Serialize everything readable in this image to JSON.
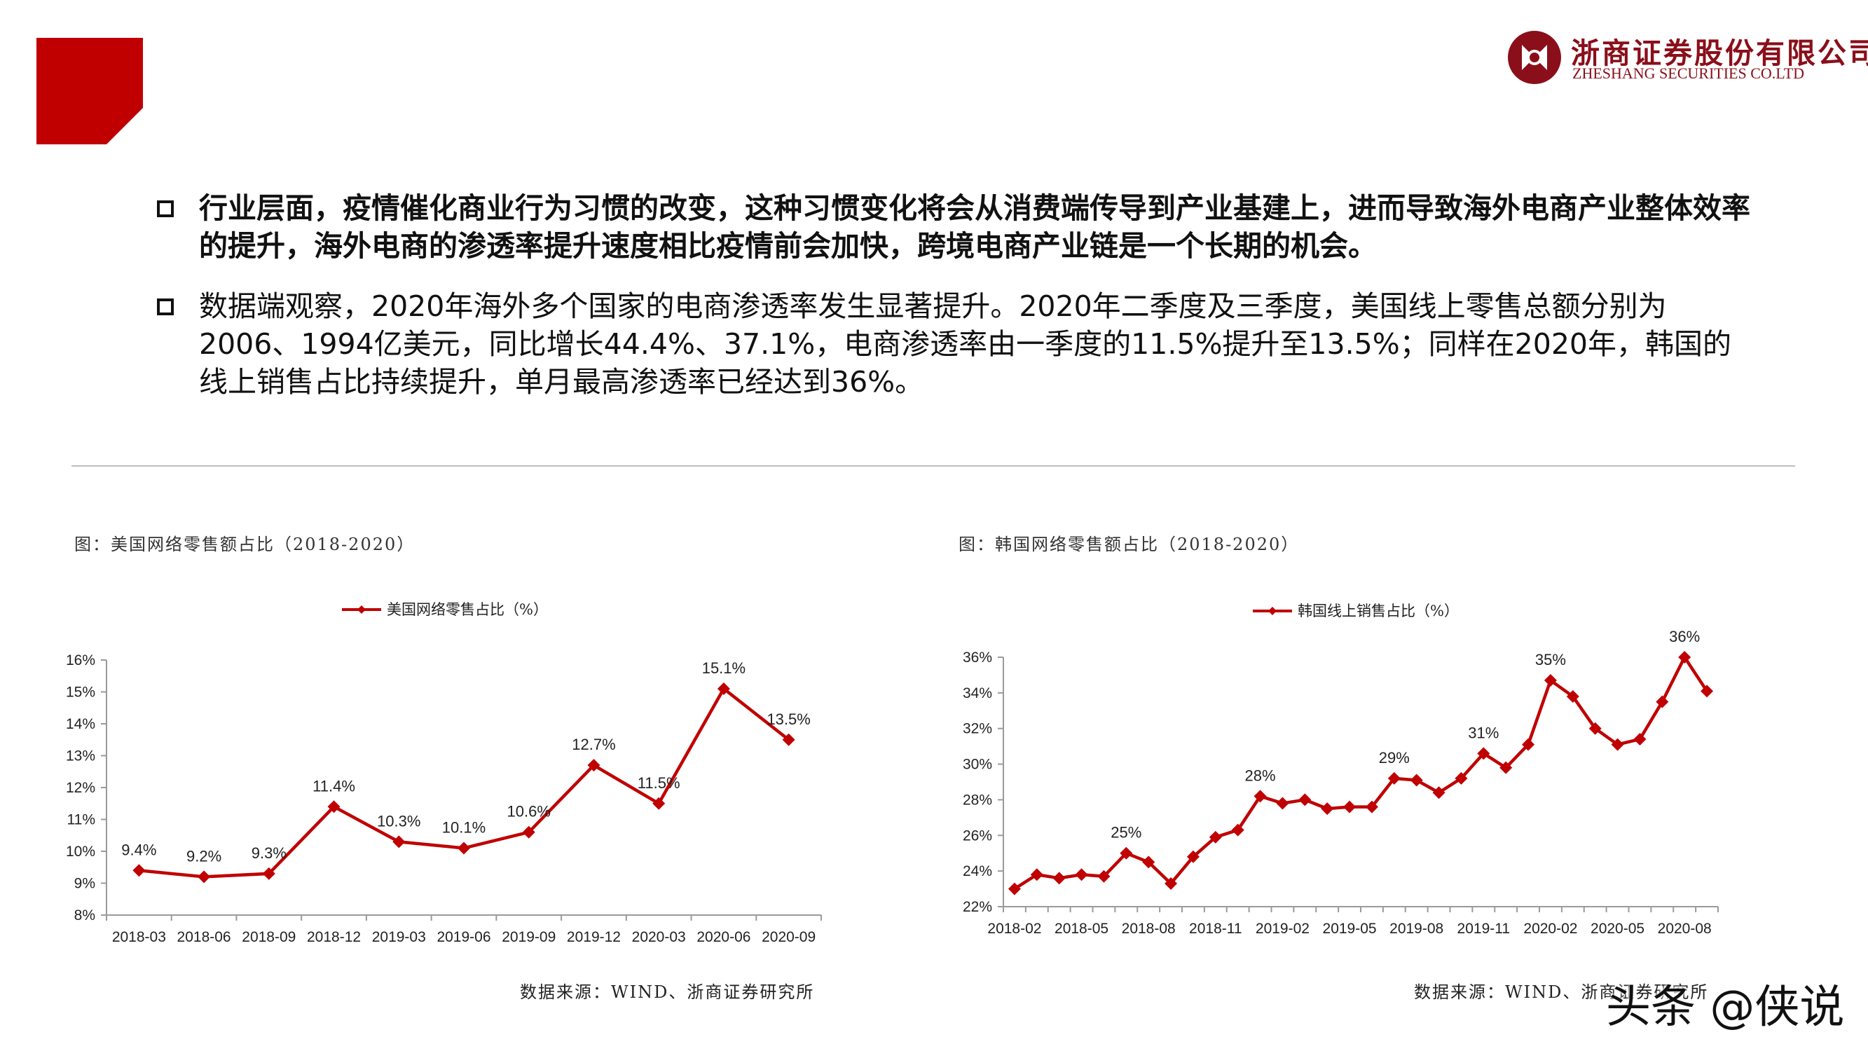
{
  "brand": {
    "company_cn": "浙商证券股份有限公司",
    "company_en": "ZHESHANG SECURITIES CO.LTD",
    "accent_color": "#c00000",
    "logo_color": "#8a0f1a",
    "logo_icon": "zheshang-logo-icon"
  },
  "bullets": [
    {
      "icon": "square-bullet-icon",
      "text": "行业层面，疫情催化商业行为习惯的改变，这种习惯变化将会从消费端传导到产业基建上，进而导致海外电商产业整体效率的提升，海外电商的渗透率提升速度相比疫情前会加快，跨境电商产业链是一个长期的机会。"
    },
    {
      "icon": "square-bullet-icon",
      "text": "数据端观察，2020年海外多个国家的电商渗透率发生显著提升。2020年二季度及三季度，美国线上零售总额分别为2006、1994亿美元，同比增长44.4%、37.1%，电商渗透率由一季度的11.5%提升至13.5%；同样在2020年，韩国的线上销售占比持续提升，单月最高渗透率已经达到36%。"
    }
  ],
  "figures": [
    {
      "title": "图：美国网络零售额占比（2018-2020）",
      "source": "数据来源：WIND、浙商证券研究所"
    },
    {
      "title": "图：韩国网络零售额占比（2018-2020）",
      "source": "数据来源：WIND、浙商证券研究所"
    }
  ],
  "watermark": "头条 @侠说",
  "chart_data": [
    {
      "type": "line",
      "title": "",
      "series": [
        {
          "name": "美国网络零售占比（%）",
          "color": "#c00000",
          "marker": "diamond",
          "values": [
            9.4,
            9.2,
            9.3,
            11.4,
            10.3,
            10.1,
            10.6,
            12.7,
            11.5,
            15.1,
            13.5
          ]
        }
      ],
      "x": [
        "2018-03",
        "2018-06",
        "2018-09",
        "2018-12",
        "2019-03",
        "2019-06",
        "2019-09",
        "2019-12",
        "2020-03",
        "2020-06",
        "2020-09"
      ],
      "ylim": [
        8,
        16
      ],
      "yticks": [
        8,
        9,
        10,
        11,
        12,
        13,
        14,
        15,
        16
      ],
      "ytick_labels": [
        "8%",
        "9%",
        "10%",
        "11%",
        "12%",
        "13%",
        "14%",
        "15%",
        "16%"
      ],
      "data_labels": [
        "9.4%",
        "9.2%",
        "9.3%",
        "11.4%",
        "10.3%",
        "10.1%",
        "10.6%",
        "12.7%",
        "11.5%",
        "15.1%",
        "13.5%"
      ],
      "legend": "top-center",
      "grid": false
    },
    {
      "type": "line",
      "title": "",
      "series": [
        {
          "name": "韩国线上销售占比（%）",
          "color": "#c00000",
          "marker": "diamond",
          "values": [
            23.0,
            23.8,
            23.6,
            23.8,
            23.7,
            25.0,
            24.5,
            23.3,
            24.8,
            25.9,
            26.3,
            28.2,
            27.8,
            28.0,
            27.5,
            27.6,
            27.6,
            29.2,
            29.1,
            28.4,
            29.2,
            30.6,
            29.8,
            31.1,
            34.7,
            33.8,
            32.0,
            31.1,
            31.4,
            33.5,
            36.0,
            34.1
          ]
        }
      ],
      "x": [
        "2018-02",
        "2018-03",
        "2018-04",
        "2018-05",
        "2018-06",
        "2018-07",
        "2018-08",
        "2018-09",
        "2018-10",
        "2018-11",
        "2018-12",
        "2019-01",
        "2019-02",
        "2019-03",
        "2019-04",
        "2019-05",
        "2019-06",
        "2019-07",
        "2019-08",
        "2019-09",
        "2019-10",
        "2019-11",
        "2019-12",
        "2020-01",
        "2020-02",
        "2020-03",
        "2020-04",
        "2020-05",
        "2020-06",
        "2020-07",
        "2020-08",
        "2020-09"
      ],
      "xtick_labels": [
        "2018-02",
        "2018-05",
        "2018-08",
        "2018-11",
        "2019-02",
        "2019-05",
        "2019-08",
        "2019-11",
        "2020-02",
        "2020-05",
        "2020-08"
      ],
      "ylim": [
        22,
        36
      ],
      "yticks": [
        22,
        24,
        26,
        28,
        30,
        32,
        34,
        36
      ],
      "ytick_labels": [
        "22%",
        "24%",
        "26%",
        "28%",
        "30%",
        "32%",
        "34%",
        "36%"
      ],
      "data_labels": [
        {
          "x": "2018-07",
          "text": "25%"
        },
        {
          "x": "2019-01",
          "text": "28%"
        },
        {
          "x": "2019-07",
          "text": "29%"
        },
        {
          "x": "2019-11",
          "text": "31%"
        },
        {
          "x": "2020-02",
          "text": "35%"
        },
        {
          "x": "2020-08",
          "text": "36%"
        }
      ],
      "legend": "top-center",
      "grid": false
    }
  ]
}
